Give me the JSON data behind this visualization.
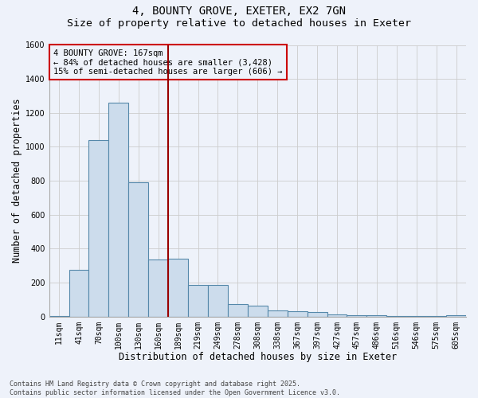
{
  "title_line1": "4, BOUNTY GROVE, EXETER, EX2 7GN",
  "title_line2": "Size of property relative to detached houses in Exeter",
  "xlabel": "Distribution of detached houses by size in Exeter",
  "ylabel": "Number of detached properties",
  "categories": [
    "11sqm",
    "41sqm",
    "70sqm",
    "100sqm",
    "130sqm",
    "160sqm",
    "189sqm",
    "219sqm",
    "249sqm",
    "278sqm",
    "308sqm",
    "338sqm",
    "367sqm",
    "397sqm",
    "427sqm",
    "457sqm",
    "486sqm",
    "516sqm",
    "546sqm",
    "575sqm",
    "605sqm"
  ],
  "values": [
    5,
    275,
    1040,
    1260,
    790,
    335,
    340,
    185,
    185,
    75,
    65,
    35,
    30,
    25,
    15,
    10,
    10,
    5,
    5,
    5,
    10
  ],
  "bar_color": "#ccdcec",
  "bar_edge_color": "#5588aa",
  "vline_color": "#990000",
  "annotation_text": "4 BOUNTY GROVE: 167sqm\n← 84% of detached houses are smaller (3,428)\n15% of semi-detached houses are larger (606) →",
  "annotation_box_color": "#cc0000",
  "ylim": [
    0,
    1600
  ],
  "yticks": [
    0,
    200,
    400,
    600,
    800,
    1000,
    1200,
    1400,
    1600
  ],
  "grid_color": "#cccccc",
  "background_color": "#eef2fa",
  "footer_text": "Contains HM Land Registry data © Crown copyright and database right 2025.\nContains public sector information licensed under the Open Government Licence v3.0.",
  "title_fontsize": 10,
  "subtitle_fontsize": 9.5,
  "tick_fontsize": 7,
  "label_fontsize": 8.5,
  "annotation_fontsize": 7.5,
  "footer_fontsize": 6
}
